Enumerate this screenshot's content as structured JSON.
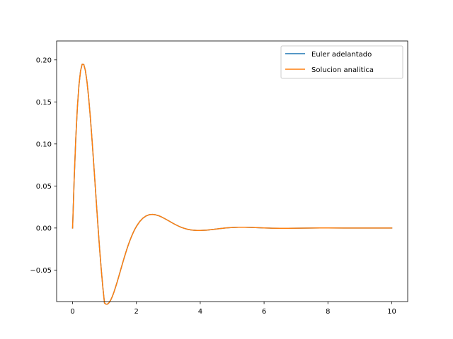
{
  "chart_data": {
    "type": "line",
    "title": "",
    "xlabel": "",
    "ylabel": "",
    "xlim": [
      -0.5,
      10.5
    ],
    "ylim": [
      -0.0875,
      0.2225
    ],
    "xticks": [
      0,
      2,
      4,
      6,
      8,
      10
    ],
    "xtick_labels": [
      "0",
      "2",
      "4",
      "6",
      "8",
      "10"
    ],
    "yticks": [
      -0.05,
      0.0,
      0.05,
      0.1,
      0.15,
      0.2
    ],
    "ytick_labels": [
      "−0.05",
      "0.00",
      "0.05",
      "0.10",
      "0.15",
      "0.20"
    ],
    "grid": false,
    "legend_position": "top-right",
    "series": [
      {
        "name": "Euler adelantado",
        "color": "#1f77b4",
        "x": [
          0,
          0.05,
          0.1,
          0.15,
          0.2,
          0.25,
          0.3,
          0.35,
          0.4,
          0.45,
          0.5,
          0.55,
          0.6,
          0.65,
          0.7,
          0.75,
          0.8,
          0.85,
          0.9,
          0.95,
          1.0,
          1.05,
          1.1,
          1.15,
          1.2,
          1.25,
          1.3,
          1.35,
          1.4,
          1.45,
          1.5,
          1.55,
          1.6,
          1.65,
          1.7,
          1.75,
          1.8,
          1.85,
          1.9,
          1.95,
          2.0,
          2.1,
          2.2,
          2.3,
          2.4,
          2.5,
          2.6,
          2.7,
          2.8,
          2.9,
          3.0,
          3.1,
          3.2,
          3.3,
          3.4,
          3.5,
          3.6,
          3.7,
          3.8,
          3.9,
          4.0,
          4.2,
          4.4,
          4.6,
          4.8,
          5.0,
          5.2,
          5.4,
          5.6,
          5.8,
          6.0,
          6.25,
          6.5,
          6.75,
          7.0,
          7.25,
          7.5,
          7.75,
          8.0,
          8.5,
          9.0,
          9.5,
          10.0
        ],
        "y": [
          0.0,
          0.0581,
          0.1061,
          0.1434,
          0.1701,
          0.187,
          0.1948,
          0.1946,
          0.1875,
          0.1745,
          0.1565,
          0.1346,
          0.1099,
          0.0831,
          0.0554,
          0.0274,
          -0.0002,
          -0.0263,
          -0.0501,
          -0.0713,
          -0.0893,
          -0.0907,
          -0.0904,
          -0.0885,
          -0.0853,
          -0.081,
          -0.0758,
          -0.07,
          -0.0638,
          -0.0573,
          -0.0507,
          -0.0441,
          -0.0376,
          -0.0313,
          -0.0253,
          -0.0197,
          -0.0145,
          -0.0097,
          -0.0054,
          -0.0015,
          0.0019,
          0.0075,
          0.0116,
          0.0143,
          0.0158,
          0.0162,
          0.0157,
          0.0146,
          0.0129,
          0.0109,
          0.0088,
          0.0066,
          0.0045,
          0.0026,
          0.0009,
          -0.0004,
          -0.0015,
          -0.0022,
          -0.0027,
          -0.0029,
          -0.0029,
          -0.0025,
          -0.0017,
          -0.0008,
          0.0001,
          0.0006,
          0.0009,
          0.0009,
          0.0007,
          0.0004,
          0.0001,
          -0.0002,
          -0.0003,
          -0.0003,
          -0.0002,
          -0.0001,
          0.0,
          0.0001,
          0.0001,
          0.0,
          0.0,
          0.0,
          0.0
        ]
      },
      {
        "name": "Solucion analitica",
        "color": "#ff7f0e",
        "x": [
          0,
          0.05,
          0.1,
          0.15,
          0.2,
          0.25,
          0.3,
          0.35,
          0.4,
          0.45,
          0.5,
          0.55,
          0.6,
          0.65,
          0.7,
          0.75,
          0.8,
          0.85,
          0.9,
          0.95,
          1.0,
          1.05,
          1.1,
          1.15,
          1.2,
          1.25,
          1.3,
          1.35,
          1.4,
          1.45,
          1.5,
          1.55,
          1.6,
          1.65,
          1.7,
          1.75,
          1.8,
          1.85,
          1.9,
          1.95,
          2.0,
          2.1,
          2.2,
          2.3,
          2.4,
          2.5,
          2.6,
          2.7,
          2.8,
          2.9,
          3.0,
          3.1,
          3.2,
          3.3,
          3.4,
          3.5,
          3.6,
          3.7,
          3.8,
          3.9,
          4.0,
          4.2,
          4.4,
          4.6,
          4.8,
          5.0,
          5.2,
          5.4,
          5.6,
          5.8,
          6.0,
          6.25,
          6.5,
          6.75,
          7.0,
          7.25,
          7.5,
          7.75,
          8.0,
          8.5,
          9.0,
          9.5,
          10.0
        ],
        "y": [
          0.0,
          0.0581,
          0.1061,
          0.1434,
          0.1701,
          0.187,
          0.1948,
          0.1946,
          0.1875,
          0.1745,
          0.1565,
          0.1346,
          0.1099,
          0.0831,
          0.0554,
          0.0274,
          -0.0002,
          -0.0263,
          -0.0501,
          -0.0713,
          -0.0893,
          -0.0907,
          -0.0904,
          -0.0885,
          -0.0853,
          -0.081,
          -0.0758,
          -0.07,
          -0.0638,
          -0.0573,
          -0.0507,
          -0.0441,
          -0.0376,
          -0.0313,
          -0.0253,
          -0.0197,
          -0.0145,
          -0.0097,
          -0.0054,
          -0.0015,
          0.0019,
          0.0075,
          0.0116,
          0.0143,
          0.0158,
          0.0162,
          0.0157,
          0.0146,
          0.0129,
          0.0109,
          0.0088,
          0.0066,
          0.0045,
          0.0026,
          0.0009,
          -0.0004,
          -0.0015,
          -0.0022,
          -0.0027,
          -0.0029,
          -0.0029,
          -0.0025,
          -0.0017,
          -0.0008,
          0.0001,
          0.0006,
          0.0009,
          0.0009,
          0.0007,
          0.0004,
          0.0001,
          -0.0002,
          -0.0003,
          -0.0003,
          -0.0002,
          -0.0001,
          0.0,
          0.0001,
          0.0001,
          0.0,
          0.0,
          0.0,
          0.0
        ]
      }
    ]
  }
}
